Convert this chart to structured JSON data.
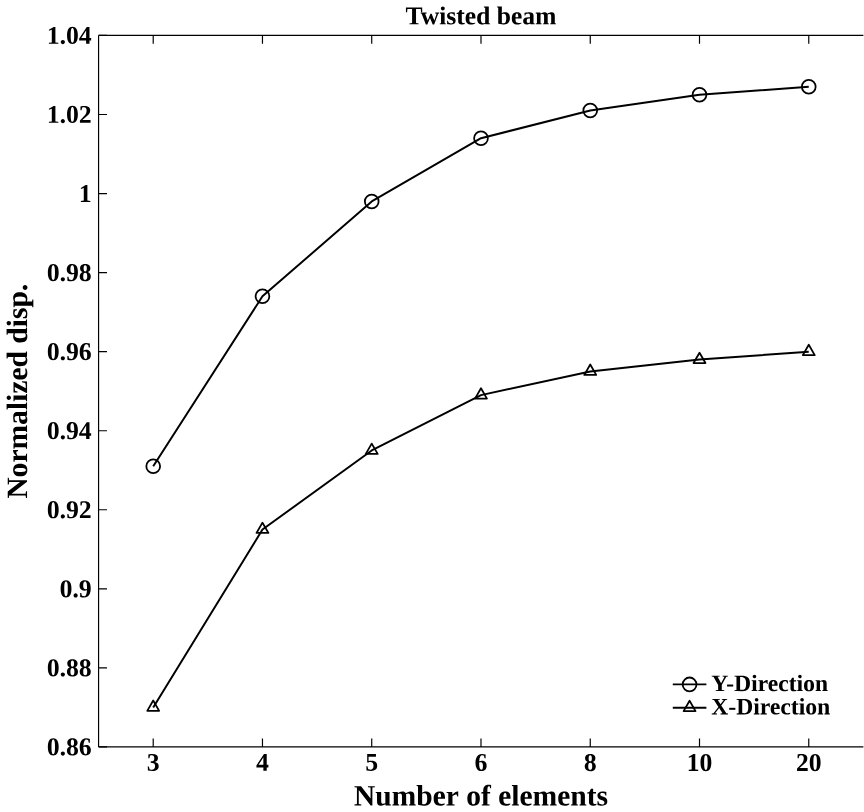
{
  "chart_data": {
    "type": "line",
    "title": "Twisted beam",
    "xlabel": "Number of elements",
    "ylabel": "Normalized disp.",
    "categories": [
      "3",
      "4",
      "5",
      "6",
      "8",
      "10",
      "20"
    ],
    "series": [
      {
        "name": "Y-Direction",
        "color": "#000000",
        "marker": "circle",
        "values": [
          0.931,
          0.974,
          0.998,
          1.014,
          1.021,
          1.025,
          1.027
        ]
      },
      {
        "name": "X-Direction",
        "color": "#000000",
        "marker": "triangle",
        "values": [
          0.87,
          0.915,
          0.935,
          0.949,
          0.955,
          0.958,
          0.96
        ]
      }
    ],
    "ylim": [
      0.86,
      1.04
    ],
    "yticks": [
      0.86,
      0.88,
      0.9,
      0.92,
      0.94,
      0.96,
      0.98,
      1,
      1.02,
      1.04
    ],
    "grid": false,
    "legend": "bottom right",
    "line_style": "solid"
  }
}
